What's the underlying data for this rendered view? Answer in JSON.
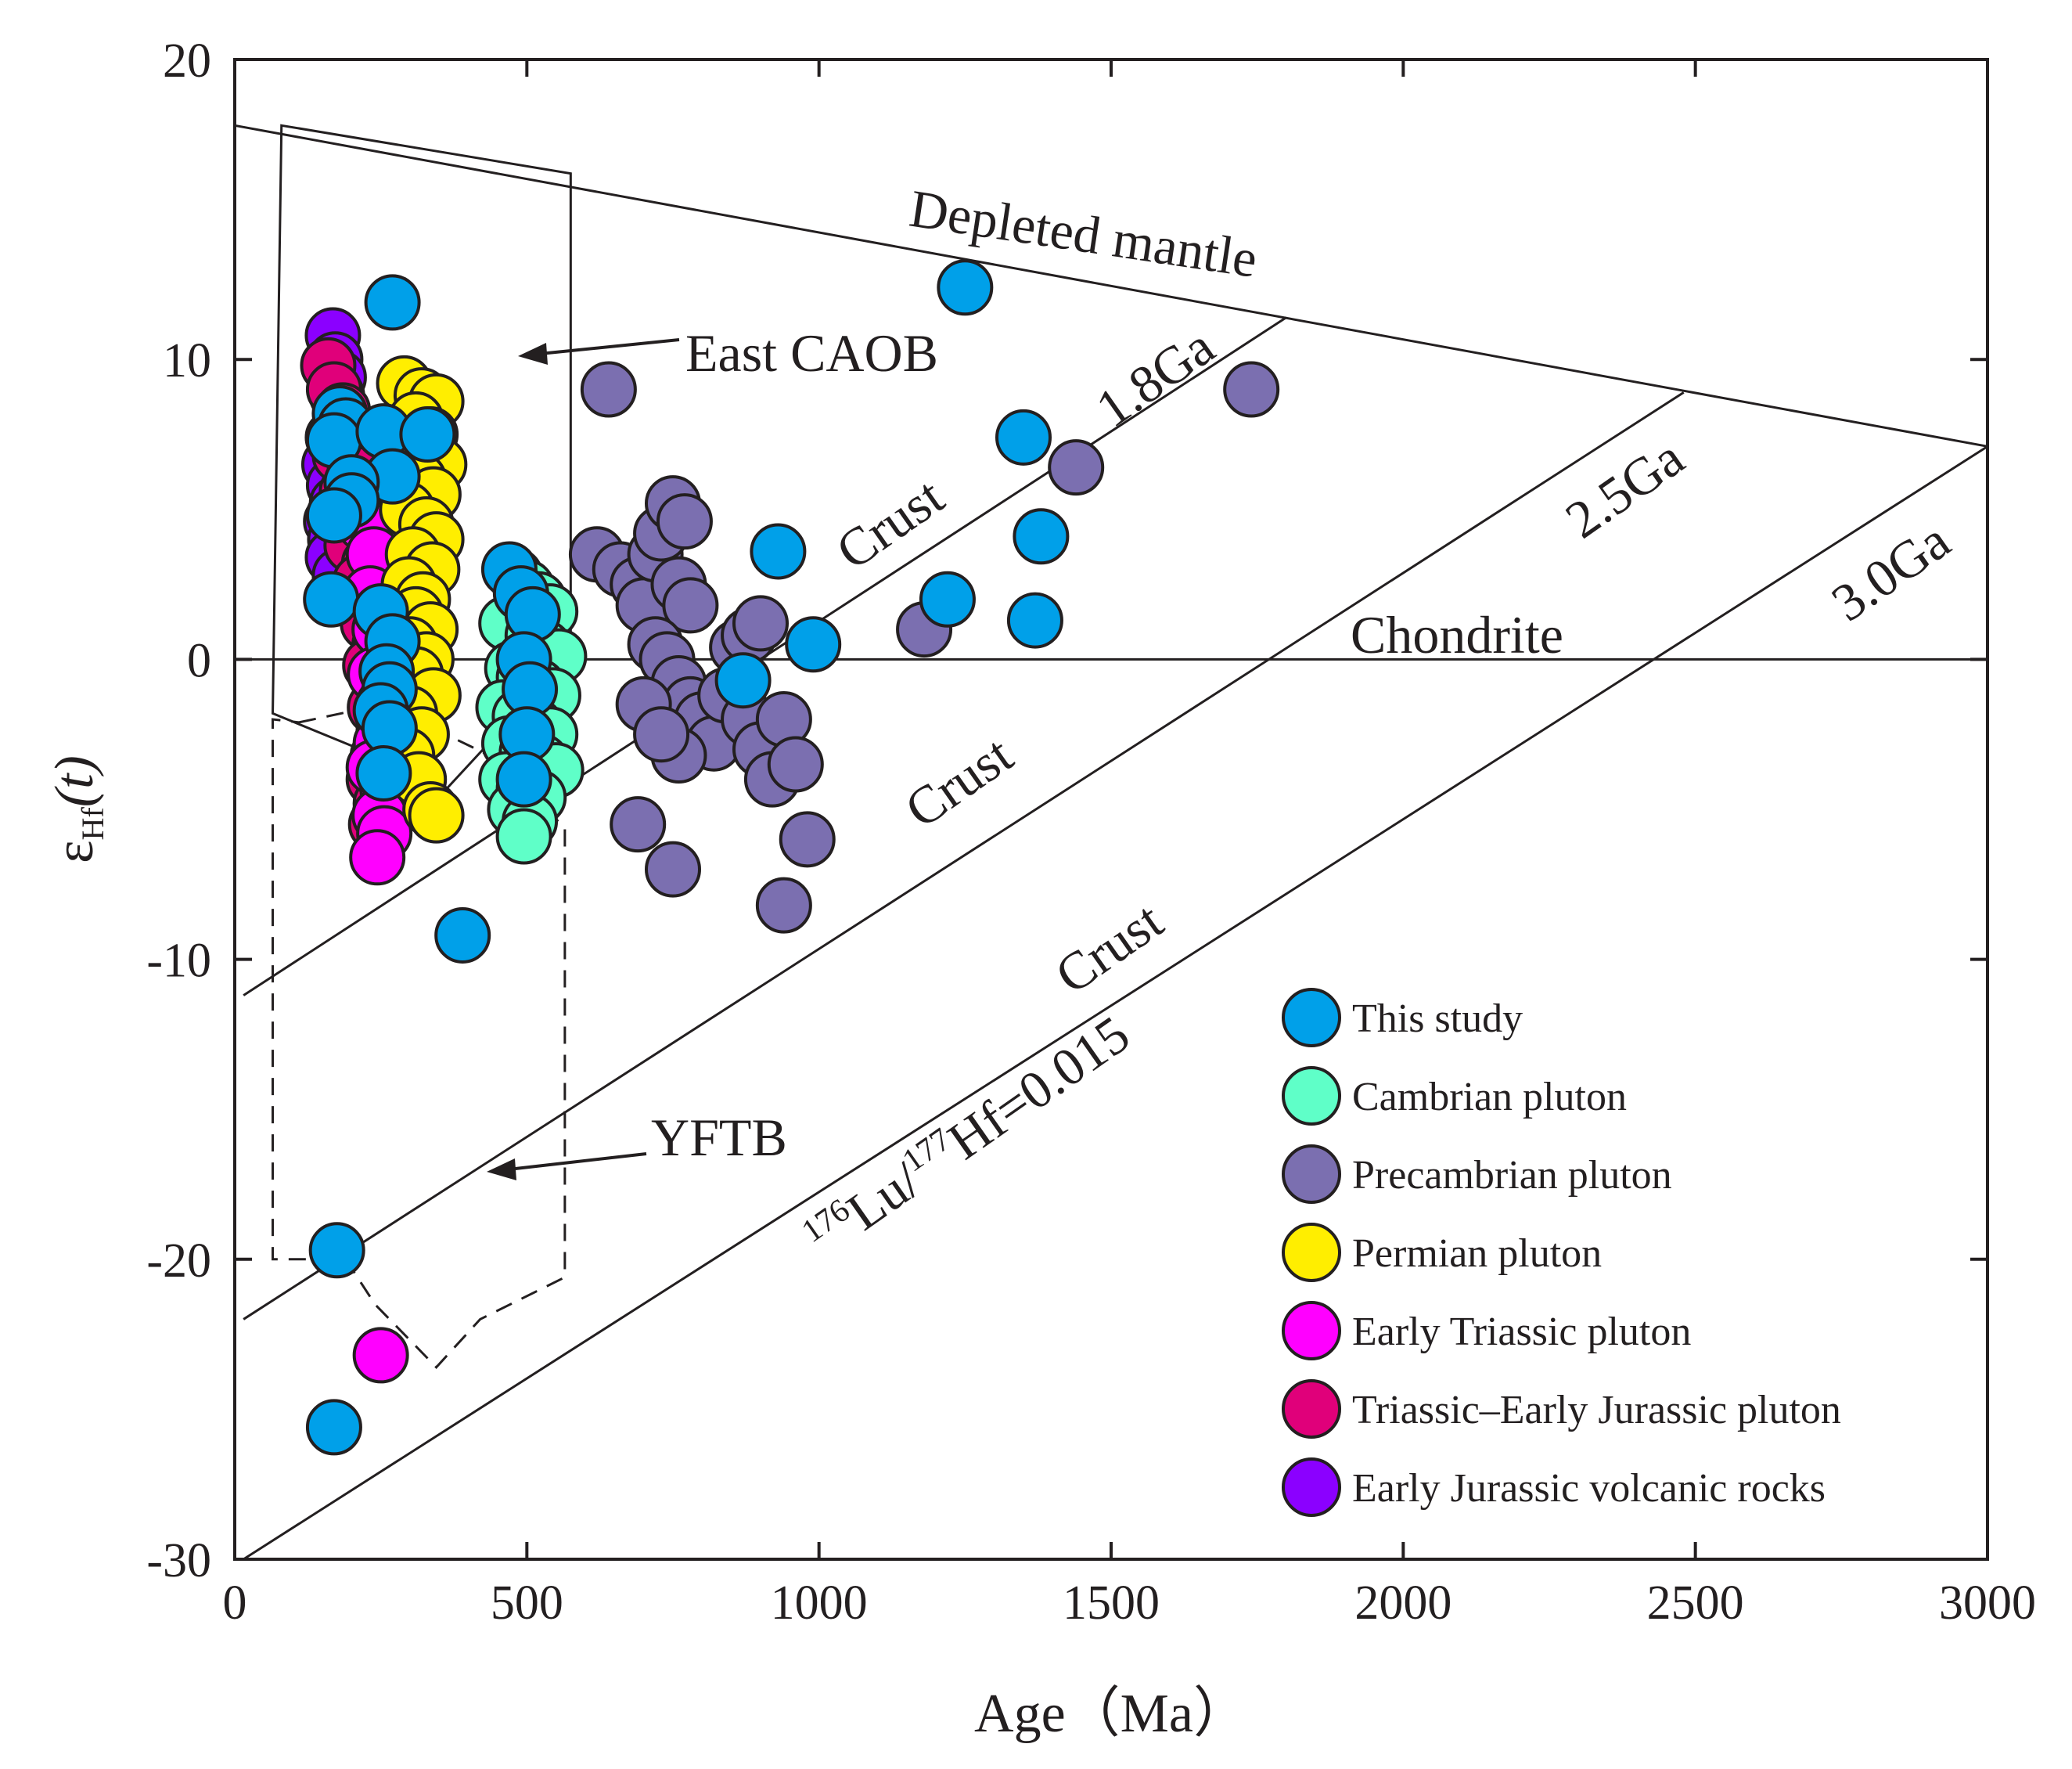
{
  "chart_data": {
    "type": "scatter",
    "xlabel": "Age（Ma）",
    "ylabel_symbol": "ε",
    "ylabel_subscript": "Hf",
    "ylabel_suffix": "(t)",
    "xlim": [
      0,
      3000
    ],
    "ylim": [
      -30,
      20
    ],
    "xticks": [
      0,
      500,
      1000,
      1500,
      2000,
      2500,
      3000
    ],
    "yticks": [
      -30,
      -20,
      -10,
      0,
      10,
      20
    ],
    "lines": [
      {
        "name": "depleted-mantle-line",
        "points": [
          [
            0,
            17.8
          ],
          [
            3000,
            7.1
          ]
        ]
      },
      {
        "name": "chondrite-line",
        "points": [
          [
            0,
            0
          ],
          [
            3000,
            0
          ]
        ]
      },
      {
        "name": "crust-1.8ga-line",
        "points": [
          [
            15,
            -11.2
          ],
          [
            1800,
            11.4
          ]
        ]
      },
      {
        "name": "crust-2.5ga-line",
        "points": [
          [
            15,
            -22
          ],
          [
            2480,
            8.9
          ]
        ]
      },
      {
        "name": "crust-3.0ga-line",
        "points": [
          [
            15,
            -30
          ],
          [
            3000,
            7.1
          ]
        ]
      }
    ],
    "regions": [
      {
        "name": "east-caob-field",
        "style": "solid",
        "points": [
          [
            80,
            17.8
          ],
          [
            575,
            16.2
          ],
          [
            575,
            -1.2
          ],
          [
            425,
            -3
          ],
          [
            330,
            -5
          ],
          [
            240,
            -3.2
          ],
          [
            65,
            -1.8
          ]
        ]
      },
      {
        "name": "yftb-field",
        "style": "dashed",
        "points": [
          [
            110,
            -2.1
          ],
          [
            255,
            -1.5
          ],
          [
            425,
            -3.1
          ],
          [
            565,
            -5.6
          ],
          [
            565,
            -20.6
          ],
          [
            420,
            -22
          ],
          [
            345,
            -23.6
          ],
          [
            240,
            -21.5
          ],
          [
            190,
            -20
          ],
          [
            65,
            -20
          ],
          [
            65,
            -2
          ]
        ]
      }
    ],
    "annotations": {
      "depleted_mantle": "Depleted mantle",
      "chondrite": "Chondrite",
      "ga_18": "1.8Ga",
      "ga_25": "2.5Ga",
      "ga_30": "3.0Ga",
      "crust_1": "Crust",
      "crust_2": "Crust",
      "crust_3": "Crust",
      "ratio_sup1": "176",
      "ratio_mid1": "Lu/",
      "ratio_sup2": "177",
      "ratio_mid2": "Hf=0.015",
      "east_caob": "East CAOB",
      "yftb": "YFTB"
    },
    "legend_position": "bottom-right",
    "series": [
      {
        "name": "Early Jurassic volcanic rocks",
        "color": "#8b00ff",
        "points": [
          [
            168,
            10.8
          ],
          [
            172,
            10
          ],
          [
            178,
            9.4
          ],
          [
            175,
            8.8
          ],
          [
            182,
            8.2
          ],
          [
            168,
            7.4
          ],
          [
            162,
            6.5
          ],
          [
            170,
            5.8
          ],
          [
            175,
            5.2
          ],
          [
            165,
            4.6
          ],
          [
            172,
            4
          ],
          [
            168,
            3.4
          ],
          [
            180,
            2.8
          ]
        ]
      },
      {
        "name": "Triassic–Early Jurassic pluton",
        "color": "#e0007a",
        "points": [
          [
            160,
            9.8
          ],
          [
            170,
            9
          ],
          [
            185,
            8.3
          ],
          [
            195,
            7.6
          ],
          [
            180,
            6.8
          ],
          [
            205,
            6.2
          ],
          [
            192,
            5.6
          ],
          [
            210,
            5
          ],
          [
            222,
            4.4
          ],
          [
            200,
            3.8
          ],
          [
            230,
            3.2
          ],
          [
            215,
            2.6
          ],
          [
            240,
            2
          ],
          [
            228,
            1.2
          ],
          [
            248,
            0.5
          ],
          [
            232,
            -0.2
          ],
          [
            252,
            -0.8
          ],
          [
            240,
            -1.6
          ],
          [
            255,
            -2.4
          ],
          [
            245,
            -3.2
          ],
          [
            238,
            -4
          ],
          [
            250,
            -4.8
          ],
          [
            242,
            -5.5
          ]
        ]
      },
      {
        "name": "Early Triassic pluton",
        "color": "#ff00ff",
        "points": [
          [
            222,
            4.5
          ],
          [
            238,
            3.5
          ],
          [
            232,
            2.2
          ],
          [
            248,
            1
          ],
          [
            240,
            -0.5
          ],
          [
            255,
            -1.5
          ],
          [
            250,
            -2.8
          ],
          [
            238,
            -3.6
          ],
          [
            262,
            -4.4
          ],
          [
            248,
            -5.2
          ],
          [
            256,
            -5.8
          ],
          [
            244,
            -6.6
          ],
          [
            250,
            -23.2
          ]
        ]
      },
      {
        "name": "Permian pluton",
        "color": "#ffee00",
        "points": [
          [
            290,
            9.2
          ],
          [
            320,
            8.8
          ],
          [
            345,
            8.6
          ],
          [
            310,
            8
          ],
          [
            335,
            7.5
          ],
          [
            300,
            7
          ],
          [
            350,
            6.5
          ],
          [
            315,
            6
          ],
          [
            340,
            5.5
          ],
          [
            295,
            5
          ],
          [
            328,
            4.5
          ],
          [
            345,
            4
          ],
          [
            305,
            3.5
          ],
          [
            338,
            3
          ],
          [
            298,
            2.5
          ],
          [
            322,
            2
          ],
          [
            310,
            1.5
          ],
          [
            335,
            1
          ],
          [
            300,
            0.5
          ],
          [
            328,
            0
          ],
          [
            310,
            -0.5
          ],
          [
            340,
            -1.2
          ],
          [
            300,
            -1.8
          ],
          [
            320,
            -2.5
          ],
          [
            295,
            -3.2
          ],
          [
            315,
            -4
          ],
          [
            335,
            -5
          ],
          [
            345,
            -5.2
          ]
        ]
      },
      {
        "name": "Cambrian pluton",
        "color": "#5fffc8",
        "points": [
          [
            480,
            2.8
          ],
          [
            500,
            2.4
          ],
          [
            520,
            2
          ],
          [
            540,
            1.6
          ],
          [
            465,
            1.2
          ],
          [
            510,
            0.8
          ],
          [
            530,
            0.4
          ],
          [
            555,
            0.1
          ],
          [
            475,
            -0.3
          ],
          [
            495,
            -0.6
          ],
          [
            520,
            -0.9
          ],
          [
            545,
            -1.2
          ],
          [
            460,
            -1.6
          ],
          [
            488,
            -1.9
          ],
          [
            515,
            -2.2
          ],
          [
            540,
            -2.5
          ],
          [
            470,
            -2.8
          ],
          [
            500,
            -3.1
          ],
          [
            525,
            -3.4
          ],
          [
            550,
            -3.7
          ],
          [
            465,
            -4
          ],
          [
            495,
            -4.3
          ],
          [
            520,
            -4.6
          ],
          [
            480,
            -5
          ],
          [
            505,
            -5.4
          ],
          [
            495,
            -5.9
          ]
        ]
      },
      {
        "name": "Precambrian pluton",
        "color": "#7b6fb0",
        "points": [
          [
            640,
            9
          ],
          [
            620,
            3.5
          ],
          [
            660,
            3
          ],
          [
            690,
            2.5
          ],
          [
            700,
            1.8
          ],
          [
            720,
            3.5
          ],
          [
            730,
            4.2
          ],
          [
            750,
            5.2
          ],
          [
            770,
            4.6
          ],
          [
            760,
            2.5
          ],
          [
            780,
            1.8
          ],
          [
            720,
            0.5
          ],
          [
            740,
            0
          ],
          [
            760,
            -0.8
          ],
          [
            780,
            -1.5
          ],
          [
            800,
            -2
          ],
          [
            820,
            -2.8
          ],
          [
            760,
            -3.2
          ],
          [
            840,
            -1.2
          ],
          [
            860,
            0.4
          ],
          [
            880,
            0.8
          ],
          [
            900,
            1.2
          ],
          [
            880,
            -2
          ],
          [
            900,
            -3
          ],
          [
            920,
            -4
          ],
          [
            940,
            -2
          ],
          [
            960,
            -3.5
          ],
          [
            980,
            -6
          ],
          [
            690,
            -5.5
          ],
          [
            750,
            -7
          ],
          [
            940,
            -8.2
          ],
          [
            700,
            -1.5
          ],
          [
            730,
            -2.5
          ],
          [
            1180,
            1
          ],
          [
            1440,
            6.4
          ],
          [
            1740,
            9
          ]
        ]
      },
      {
        "name": "This study",
        "color": "#00a0e9",
        "points": [
          [
            270,
            11.9
          ],
          [
            180,
            8.2
          ],
          [
            190,
            7.8
          ],
          [
            170,
            7.3
          ],
          [
            255,
            7.6
          ],
          [
            330,
            7.5
          ],
          [
            270,
            6.1
          ],
          [
            200,
            5.9
          ],
          [
            200,
            5.3
          ],
          [
            170,
            4.8
          ],
          [
            165,
            2
          ],
          [
            250,
            1.6
          ],
          [
            270,
            0.6
          ],
          [
            260,
            -0.4
          ],
          [
            265,
            -1
          ],
          [
            250,
            -1.7
          ],
          [
            265,
            -2.3
          ],
          [
            255,
            -3.8
          ],
          [
            470,
            3
          ],
          [
            490,
            2.2
          ],
          [
            510,
            1.5
          ],
          [
            495,
            0
          ],
          [
            505,
            -1
          ],
          [
            500,
            -2.5
          ],
          [
            495,
            -4
          ],
          [
            390,
            -9.2
          ],
          [
            175,
            -19.7
          ],
          [
            170,
            -25.6
          ],
          [
            870,
            -0.7
          ],
          [
            930,
            3.6
          ],
          [
            990,
            0.5
          ],
          [
            1220,
            2
          ],
          [
            1250,
            12.4
          ],
          [
            1350,
            7.4
          ],
          [
            1380,
            4.1
          ],
          [
            1370,
            1.3
          ]
        ]
      }
    ],
    "legend_order": [
      "This study",
      "Cambrian pluton",
      "Precambrian pluton",
      "Permian pluton",
      "Early Triassic pluton",
      "Triassic–Early Jurassic pluton",
      "Early Jurassic volcanic rocks"
    ],
    "draw_order": [
      "Early Jurassic volcanic rocks",
      "Triassic–Early Jurassic pluton",
      "Early Triassic pluton",
      "Permian pluton",
      "Cambrian pluton",
      "Precambrian pluton",
      "This study"
    ]
  }
}
